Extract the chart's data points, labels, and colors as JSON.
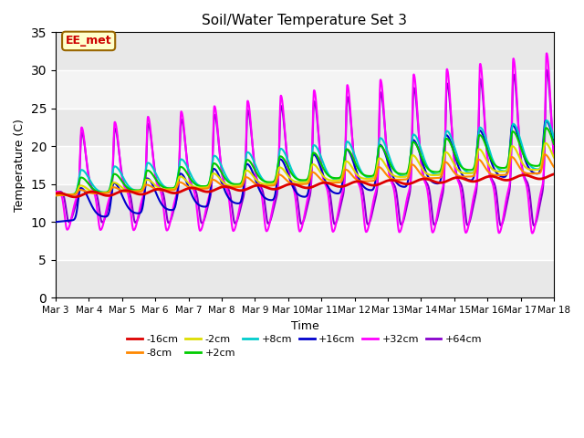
{
  "title": "Soil/Water Temperature Set 3",
  "xlabel": "Time",
  "ylabel": "Temperature (C)",
  "ylim": [
    0,
    35
  ],
  "yticks": [
    0,
    5,
    10,
    15,
    20,
    25,
    30,
    35
  ],
  "date_labels": [
    "Mar 3",
    "Mar 4",
    "Mar 5",
    "Mar 6",
    "Mar 7",
    "Mar 8",
    "Mar 9",
    "Mar 10",
    "Mar 11",
    "Mar 12",
    "Mar 13",
    "Mar 14",
    "Mar 15",
    "Mar 16",
    "Mar 17",
    "Mar 18"
  ],
  "annotation_text": "EE_met",
  "annotation_bg": "#ffffcc",
  "annotation_border": "#996600",
  "annotation_text_color": "#cc0000",
  "series": {
    "-16cm": {
      "color": "#dd0000",
      "lw": 2.0
    },
    "-8cm": {
      "color": "#ff8800",
      "lw": 1.5
    },
    "-2cm": {
      "color": "#dddd00",
      "lw": 1.5
    },
    "+2cm": {
      "color": "#00cc00",
      "lw": 1.5
    },
    "+8cm": {
      "color": "#00cccc",
      "lw": 1.5
    },
    "+16cm": {
      "color": "#0000cc",
      "lw": 1.5
    },
    "+32cm": {
      "color": "#ff00ff",
      "lw": 1.5
    },
    "+64cm": {
      "color": "#8800cc",
      "lw": 1.5
    }
  },
  "n_days": 15,
  "points_per_day": 144
}
